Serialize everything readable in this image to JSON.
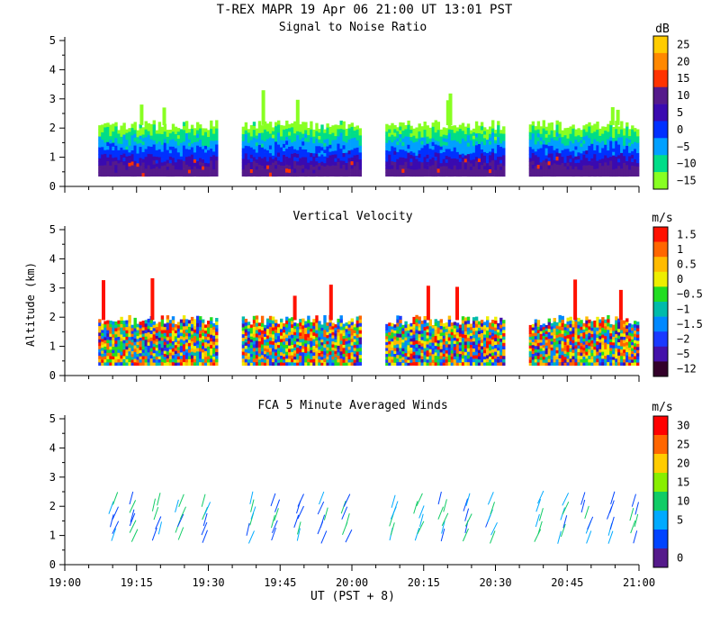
{
  "header": {
    "title": "T-REX  MAPR 19 Apr 06  21:00 UT  13:01  PST"
  },
  "x_axis": {
    "label": "UT  (PST + 8)",
    "range": [
      0,
      120
    ],
    "unit": "minutes after 19:00 UT",
    "ticks": [
      {
        "value": 0,
        "label": "19:00"
      },
      {
        "value": 15,
        "label": "19:15"
      },
      {
        "value": 30,
        "label": "19:30"
      },
      {
        "value": 45,
        "label": "19:45"
      },
      {
        "value": 60,
        "label": "20:00"
      },
      {
        "value": 75,
        "label": "20:15"
      },
      {
        "value": 90,
        "label": "20:30"
      },
      {
        "value": 105,
        "label": "20:45"
      },
      {
        "value": 120,
        "label": "21:00"
      }
    ]
  },
  "chart_data": [
    {
      "type": "heatmap",
      "title": "Signal to Noise Ratio",
      "xlabel": "UT  (PST + 8)",
      "ylabel": "",
      "ylim": [
        0,
        5
      ],
      "yticks": [
        "0",
        "1",
        "2",
        "3",
        "4",
        "5"
      ],
      "colorbar": {
        "unit": "dB",
        "levels": [
          {
            "label": "25",
            "color": "#ffcc00"
          },
          {
            "label": "20",
            "color": "#ff8800"
          },
          {
            "label": "15",
            "color": "#ff3300"
          },
          {
            "label": "10",
            "color": "#551a8b"
          },
          {
            "label": "5",
            "color": "#3a0ab0"
          },
          {
            "label": "0",
            "color": "#0030ff"
          },
          {
            "label": "−5",
            "color": "#00a0ff"
          },
          {
            "label": "−10",
            "color": "#00dd88"
          },
          {
            "label": "−15",
            "color": "#88ff22"
          }
        ],
        "bottom_color": "#88ff22"
      },
      "segments": [
        {
          "start": 7,
          "end": 32
        },
        {
          "start": 37,
          "end": 62
        },
        {
          "start": 67,
          "end": 92
        },
        {
          "start": 97,
          "end": 122
        }
      ],
      "data_base_km": 0.35,
      "data_top_km": 2.1
    },
    {
      "type": "heatmap",
      "title": "Vertical Velocity",
      "xlabel": "UT  (PST + 8)",
      "ylabel": "Altitude (km)",
      "ylim": [
        0,
        5
      ],
      "yticks": [
        "0",
        "1",
        "2",
        "3",
        "4",
        "5"
      ],
      "colorbar": {
        "unit": "m/s",
        "levels": [
          {
            "label": "1.5",
            "color": "#ff1100"
          },
          {
            "label": "1",
            "color": "#ff6600"
          },
          {
            "label": "0.5",
            "color": "#ffbb00"
          },
          {
            "label": "0",
            "color": "#eeee00"
          },
          {
            "label": "−0.5",
            "color": "#22dd22"
          },
          {
            "label": "−1",
            "color": "#00bbaa"
          },
          {
            "label": "−1.5",
            "color": "#0088ff"
          },
          {
            "label": "−2",
            "color": "#1a3aff"
          },
          {
            "label": "−5",
            "color": "#4411aa"
          },
          {
            "label": "−12",
            "color": "#33002a"
          }
        ]
      },
      "segments": [
        {
          "start": 7,
          "end": 32
        },
        {
          "start": 37,
          "end": 62
        },
        {
          "start": 67,
          "end": 92
        },
        {
          "start": 97,
          "end": 122
        }
      ],
      "data_base_km": 0.35,
      "data_top_km": 1.9
    },
    {
      "type": "scatter",
      "title": "FCA 5 Minute Averaged Winds",
      "xlabel": "UT  (PST + 8)",
      "ylabel": "",
      "ylim": [
        0,
        5
      ],
      "yticks": [
        "0",
        "1",
        "2",
        "3",
        "4",
        "5"
      ],
      "colorbar": {
        "unit": "m/s",
        "levels": [
          {
            "label": "30",
            "color": "#ff0000"
          },
          {
            "label": "25",
            "color": "#ff6600"
          },
          {
            "label": "20",
            "color": "#ffcc00"
          },
          {
            "label": "15",
            "color": "#88ee00"
          },
          {
            "label": "10",
            "color": "#11cc66"
          },
          {
            "label": "5",
            "color": "#00aaff"
          },
          {
            "label": "",
            "color": "#0044ff"
          },
          {
            "label": "0",
            "color": "#551a8b"
          }
        ]
      },
      "wind_columns_minutes": [
        11,
        15.5,
        20.5,
        25,
        30,
        40,
        45,
        50,
        55,
        60,
        70,
        75,
        80,
        85,
        90,
        100,
        105,
        110,
        115,
        120
      ]
    }
  ]
}
